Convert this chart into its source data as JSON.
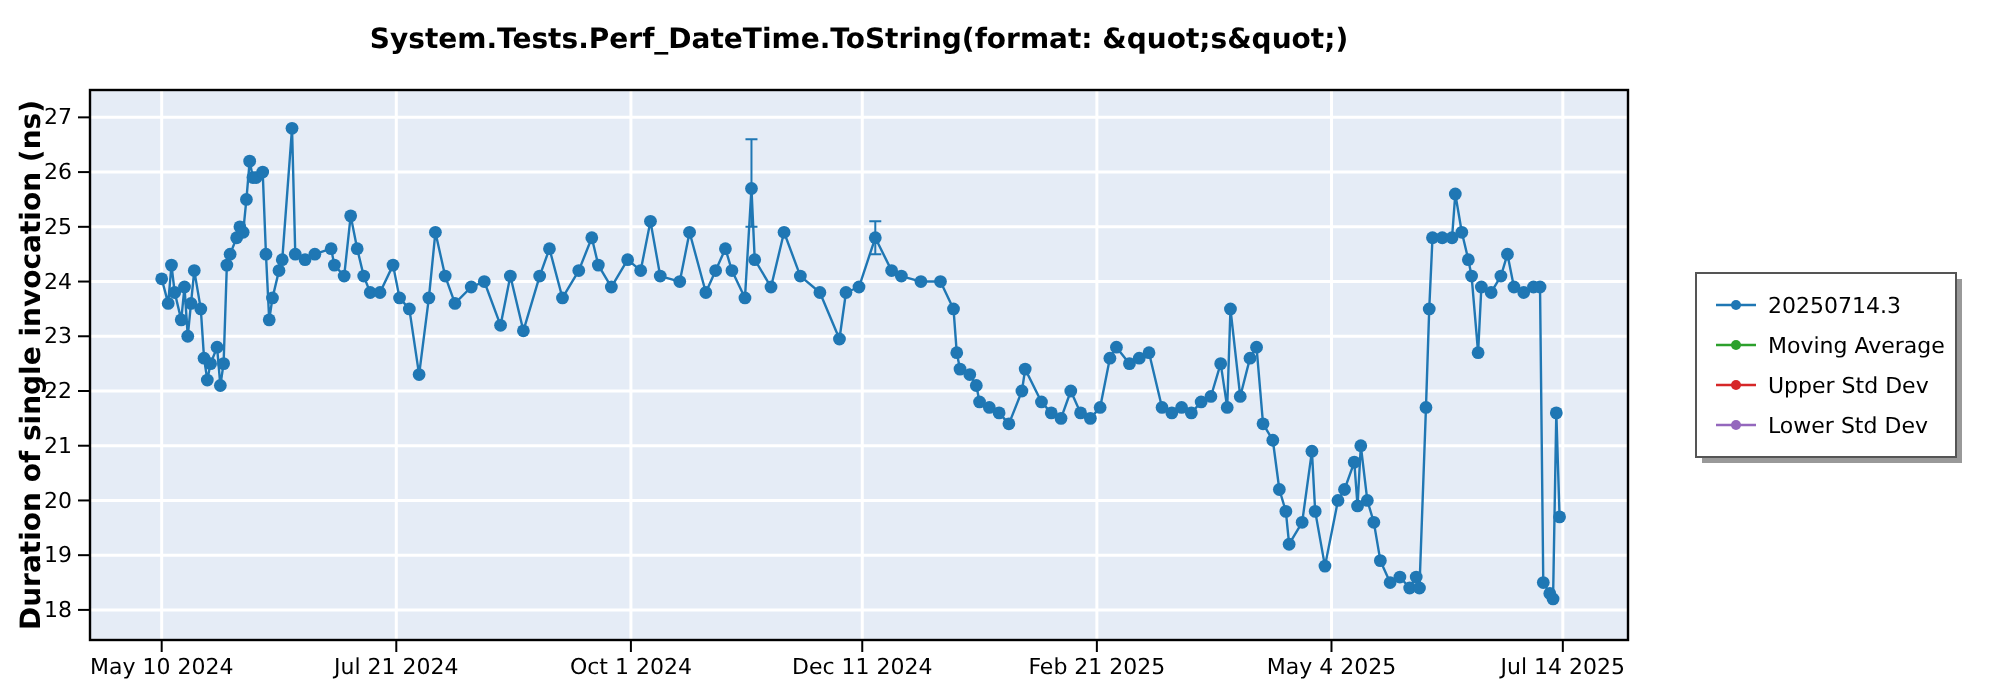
{
  "chart_data": {
    "type": "line",
    "title": "System.Tests.Perf_DateTime.ToString(format: &quot;s&quot;)",
    "ylabel": "Duration of single invocation (ns)",
    "x": [
      "2024-05-10",
      "2024-05-12",
      "2024-05-13",
      "2024-05-14",
      "2024-05-16",
      "2024-05-17",
      "2024-05-18",
      "2024-05-19",
      "2024-05-20",
      "2024-05-22",
      "2024-05-23",
      "2024-05-24",
      "2024-05-25",
      "2024-05-27",
      "2024-05-28",
      "2024-05-29",
      "2024-05-30",
      "2024-05-31",
      "2024-06-02",
      "2024-06-03",
      "2024-06-04",
      "2024-06-05",
      "2024-06-06",
      "2024-06-07",
      "2024-06-08",
      "2024-06-10",
      "2024-06-11",
      "2024-06-12",
      "2024-06-13",
      "2024-06-15",
      "2024-06-16",
      "2024-06-19",
      "2024-06-20",
      "2024-06-23",
      "2024-06-26",
      "2024-07-01",
      "2024-07-02",
      "2024-07-05",
      "2024-07-07",
      "2024-07-09",
      "2024-07-11",
      "2024-07-13",
      "2024-07-16",
      "2024-07-20",
      "2024-07-22",
      "2024-07-25",
      "2024-07-28",
      "2024-07-31",
      "2024-08-02",
      "2024-08-05",
      "2024-08-08",
      "2024-08-13",
      "2024-08-17",
      "2024-08-22",
      "2024-08-25",
      "2024-08-29",
      "2024-09-03",
      "2024-09-06",
      "2024-09-10",
      "2024-09-15",
      "2024-09-19",
      "2024-09-21",
      "2024-09-25",
      "2024-09-30",
      "2024-10-04",
      "2024-10-07",
      "2024-10-10",
      "2024-10-16",
      "2024-10-19",
      "2024-10-24",
      "2024-10-27",
      "2024-10-30",
      "2024-11-01",
      "2024-11-05",
      "2024-11-07",
      "2024-11-08",
      "2024-11-13",
      "2024-11-17",
      "2024-11-22",
      "2024-11-28",
      "2024-12-04",
      "2024-12-06",
      "2024-12-10",
      "2024-12-15",
      "2024-12-20",
      "2024-12-23",
      "2024-12-29",
      "2025-01-04",
      "2025-01-08",
      "2025-01-09",
      "2025-01-10",
      "2025-01-13",
      "2025-01-15",
      "2025-01-16",
      "2025-01-19",
      "2025-01-22",
      "2025-01-25",
      "2025-01-29",
      "2025-01-30",
      "2025-02-04",
      "2025-02-07",
      "2025-02-10",
      "2025-02-13",
      "2025-02-16",
      "2025-02-19",
      "2025-02-22",
      "2025-02-25",
      "2025-02-27",
      "2025-03-03",
      "2025-03-06",
      "2025-03-09",
      "2025-03-13",
      "2025-03-16",
      "2025-03-19",
      "2025-03-22",
      "2025-03-25",
      "2025-03-28",
      "2025-03-31",
      "2025-04-02",
      "2025-04-03",
      "2025-04-06",
      "2025-04-09",
      "2025-04-11",
      "2025-04-13",
      "2025-04-16",
      "2025-04-18",
      "2025-04-20",
      "2025-04-21",
      "2025-04-25",
      "2025-04-28",
      "2025-04-29",
      "2025-05-02",
      "2025-05-06",
      "2025-05-08",
      "2025-05-11",
      "2025-05-12",
      "2025-05-13",
      "2025-05-15",
      "2025-05-17",
      "2025-05-19",
      "2025-05-22",
      "2025-05-25",
      "2025-05-28",
      "2025-05-30",
      "2025-05-31",
      "2025-06-02",
      "2025-06-03",
      "2025-06-04",
      "2025-06-07",
      "2025-06-10",
      "2025-06-11",
      "2025-06-13",
      "2025-06-15",
      "2025-06-16",
      "2025-06-18",
      "2025-06-19",
      "2025-06-22",
      "2025-06-25",
      "2025-06-27",
      "2025-06-29",
      "2025-07-02",
      "2025-07-05",
      "2025-07-07",
      "2025-07-08",
      "2025-07-10",
      "2025-07-11",
      "2025-07-12",
      "2025-07-13"
    ],
    "series": [
      {
        "name": "20250714.3",
        "color": "#1f77b4",
        "values": [
          24.05,
          23.6,
          24.3,
          23.8,
          23.3,
          23.9,
          23.0,
          23.6,
          24.2,
          23.5,
          22.6,
          22.2,
          22.5,
          22.8,
          22.1,
          22.5,
          24.3,
          24.5,
          24.8,
          25.0,
          24.9,
          25.5,
          26.2,
          25.9,
          25.9,
          26.0,
          24.5,
          23.3,
          23.7,
          24.2,
          24.4,
          26.8,
          24.5,
          24.4,
          24.5,
          24.6,
          24.3,
          24.1,
          25.2,
          24.6,
          24.1,
          23.8,
          23.8,
          24.3,
          23.7,
          23.5,
          22.3,
          23.7,
          24.9,
          24.1,
          23.6,
          23.9,
          24.0,
          23.2,
          24.1,
          23.1,
          24.1,
          24.6,
          23.7,
          24.2,
          24.8,
          24.3,
          23.9,
          24.4,
          24.2,
          25.1,
          24.1,
          24.0,
          24.9,
          23.8,
          24.2,
          24.6,
          24.2,
          23.7,
          25.7,
          24.4,
          23.9,
          24.9,
          24.1,
          23.8,
          22.95,
          23.8,
          23.9,
          24.8,
          24.2,
          24.1,
          24.0,
          24.0,
          23.5,
          22.7,
          22.4,
          22.3,
          22.1,
          21.8,
          21.7,
          21.6,
          21.4,
          22.0,
          22.4,
          21.8,
          21.6,
          21.5,
          22.0,
          21.6,
          21.5,
          21.7,
          22.6,
          22.8,
          22.5,
          22.6,
          22.7,
          21.7,
          21.6,
          21.7,
          21.6,
          21.8,
          21.9,
          22.5,
          21.7,
          23.5,
          21.9,
          22.6,
          22.8,
          21.4,
          21.1,
          20.2,
          19.8,
          19.2,
          19.6,
          20.9,
          19.8,
          18.8,
          20.0,
          20.2,
          20.7,
          19.9,
          21.0,
          20.0,
          19.6,
          18.9,
          18.5,
          18.6,
          18.4,
          18.6,
          18.4,
          21.7,
          23.5,
          24.8,
          24.8,
          24.8,
          25.6,
          24.9,
          24.4,
          24.1,
          22.7,
          23.9,
          23.8,
          24.1,
          24.5,
          23.9,
          23.8,
          23.9,
          23.9,
          18.5,
          18.3,
          18.2,
          21.6,
          19.7
        ],
        "errors": [
          null,
          null,
          null,
          null,
          null,
          null,
          null,
          null,
          null,
          null,
          null,
          null,
          null,
          null,
          null,
          null,
          null,
          null,
          null,
          null,
          null,
          null,
          null,
          null,
          null,
          null,
          null,
          null,
          null,
          null,
          null,
          null,
          null,
          null,
          null,
          null,
          null,
          null,
          null,
          null,
          null,
          null,
          null,
          null,
          null,
          null,
          null,
          null,
          null,
          null,
          null,
          null,
          null,
          null,
          null,
          null,
          null,
          null,
          null,
          null,
          null,
          null,
          null,
          null,
          null,
          null,
          null,
          null,
          null,
          null,
          null,
          null,
          null,
          null,
          [
            25.0,
            26.6
          ],
          null,
          null,
          null,
          null,
          null,
          null,
          null,
          null,
          [
            24.5,
            25.1
          ],
          null,
          null,
          null,
          null,
          null,
          null,
          null,
          null,
          null,
          null,
          null,
          null,
          null,
          null,
          null,
          null,
          null,
          null,
          null,
          null,
          null,
          null,
          null,
          null,
          null,
          null,
          null,
          null,
          null,
          null,
          null,
          null,
          null,
          null,
          null,
          null,
          null,
          null,
          null,
          null,
          null,
          null,
          null,
          null,
          null,
          null,
          null,
          null,
          null,
          null,
          null,
          null,
          null,
          null,
          null,
          null,
          null,
          null,
          null,
          null,
          null,
          null,
          null,
          null,
          null,
          null,
          null,
          null,
          null,
          null,
          null,
          null,
          null,
          null,
          null,
          null,
          null,
          null,
          null,
          null,
          null,
          null,
          null,
          null
        ]
      },
      {
        "name": "Moving Average",
        "color": "#2ca02c",
        "values": [
          null,
          null,
          null,
          null,
          null,
          null,
          null,
          null,
          null,
          null,
          null,
          null,
          null,
          null,
          null,
          null,
          null,
          null,
          null,
          null,
          null,
          null,
          null,
          null,
          null,
          null,
          null,
          null,
          null,
          null,
          null,
          null,
          null,
          null,
          null,
          null,
          null,
          null,
          null,
          null,
          null,
          null,
          null,
          null,
          null,
          null,
          null,
          null,
          null,
          null,
          null,
          null,
          null,
          null,
          null,
          null,
          null,
          null,
          null,
          null,
          null,
          null,
          null,
          null,
          null,
          null,
          null,
          null,
          null,
          null,
          null,
          null,
          null,
          null,
          null,
          null,
          null,
          null,
          null,
          null,
          null,
          null,
          null,
          null,
          null,
          null,
          null,
          null,
          null,
          null,
          null,
          null,
          null,
          null,
          null,
          null,
          null,
          null,
          null,
          null,
          null,
          null,
          null,
          null,
          null,
          null,
          null,
          null,
          null,
          null,
          null,
          null,
          null,
          null,
          null,
          null,
          null,
          null,
          null,
          null,
          null,
          null,
          null,
          null,
          null,
          null,
          null,
          null,
          null,
          null,
          null,
          null,
          null,
          null,
          null,
          null,
          null,
          null,
          null,
          null,
          null,
          null,
          null,
          null,
          null,
          null,
          null,
          null,
          null,
          null,
          null,
          null,
          null,
          null,
          null,
          null,
          null,
          null,
          null,
          null,
          null,
          null,
          null,
          null,
          null,
          null,
          null,
          null
        ]
      },
      {
        "name": "Upper Std Dev",
        "color": "#d62728",
        "values": [
          null,
          null,
          null,
          null,
          null,
          null,
          null,
          null,
          null,
          null,
          null,
          null,
          null,
          null,
          null,
          null,
          null,
          null,
          null,
          null,
          null,
          null,
          null,
          null,
          null,
          null,
          null,
          null,
          null,
          null,
          null,
          null,
          null,
          null,
          null,
          null,
          null,
          null,
          null,
          null,
          null,
          null,
          null,
          null,
          null,
          null,
          null,
          null,
          null,
          null,
          null,
          null,
          null,
          null,
          null,
          null,
          null,
          null,
          null,
          null,
          null,
          null,
          null,
          null,
          null,
          null,
          null,
          null,
          null,
          null,
          null,
          null,
          null,
          null,
          null,
          null,
          null,
          null,
          null,
          null,
          null,
          null,
          null,
          null,
          null,
          null,
          null,
          null,
          null,
          null,
          null,
          null,
          null,
          null,
          null,
          null,
          null,
          null,
          null,
          null,
          null,
          null,
          null,
          null,
          null,
          null,
          null,
          null,
          null,
          null,
          null,
          null,
          null,
          null,
          null,
          null,
          null,
          null,
          null,
          null,
          null,
          null,
          null,
          null,
          null,
          null,
          null,
          null,
          null,
          null,
          null,
          null,
          null,
          null,
          null,
          null,
          null,
          null,
          null,
          null,
          null,
          null,
          null,
          null,
          null,
          null,
          null,
          null,
          null,
          null,
          null,
          null,
          null,
          null,
          null,
          null,
          null,
          null,
          null,
          null,
          null,
          null,
          null,
          null,
          null,
          null,
          null,
          null
        ]
      },
      {
        "name": "Lower Std Dev",
        "color": "#9467bd",
        "values": [
          null,
          null,
          null,
          null,
          null,
          null,
          null,
          null,
          null,
          null,
          null,
          null,
          null,
          null,
          null,
          null,
          null,
          null,
          null,
          null,
          null,
          null,
          null,
          null,
          null,
          null,
          null,
          null,
          null,
          null,
          null,
          null,
          null,
          null,
          null,
          null,
          null,
          null,
          null,
          null,
          null,
          null,
          null,
          null,
          null,
          null,
          null,
          null,
          null,
          null,
          null,
          null,
          null,
          null,
          null,
          null,
          null,
          null,
          null,
          null,
          null,
          null,
          null,
          null,
          null,
          null,
          null,
          null,
          null,
          null,
          null,
          null,
          null,
          null,
          null,
          null,
          null,
          null,
          null,
          null,
          null,
          null,
          null,
          null,
          null,
          null,
          null,
          null,
          null,
          null,
          null,
          null,
          null,
          null,
          null,
          null,
          null,
          null,
          null,
          null,
          null,
          null,
          null,
          null,
          null,
          null,
          null,
          null,
          null,
          null,
          null,
          null,
          null,
          null,
          null,
          null,
          null,
          null,
          null,
          null,
          null,
          null,
          null,
          null,
          null,
          null,
          null,
          null,
          null,
          null,
          null,
          null,
          null,
          null,
          null,
          null,
          null,
          null,
          null,
          null,
          null,
          null,
          null,
          null,
          null,
          null,
          null,
          null,
          null,
          null,
          null,
          null,
          null,
          null,
          null,
          null,
          null,
          null,
          null,
          null,
          null,
          null,
          null,
          null,
          null,
          null,
          null,
          null
        ]
      }
    ],
    "xlim": [
      "2024-04-18",
      "2025-08-03"
    ],
    "xticks": [
      {
        "value": "2024-05-10",
        "label": "May 10 2024"
      },
      {
        "value": "2024-07-21",
        "label": "Jul 21 2024"
      },
      {
        "value": "2024-10-01",
        "label": "Oct 1 2024"
      },
      {
        "value": "2024-12-11",
        "label": "Dec 11 2024"
      },
      {
        "value": "2025-02-21",
        "label": "Feb 21 2025"
      },
      {
        "value": "2025-05-04",
        "label": "May 4 2025"
      },
      {
        "value": "2025-07-14",
        "label": "Jul 14 2025"
      }
    ],
    "ylim": [
      17.45,
      27.5
    ],
    "yticks": [
      18,
      19,
      20,
      21,
      22,
      23,
      24,
      25,
      26,
      27
    ],
    "grid": true,
    "legend": "right",
    "marker": "circle",
    "line_style": "solid"
  }
}
